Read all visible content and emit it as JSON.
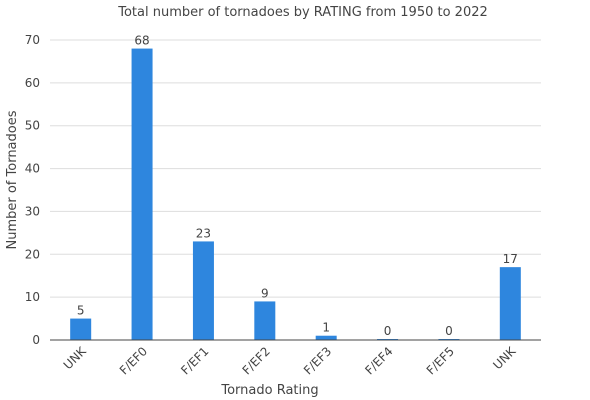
{
  "chart_data": {
    "type": "bar",
    "title": "Total number of tornadoes by RATING from 1950 to 2022",
    "xlabel": "Tornado Rating",
    "ylabel": "Number of Tornadoes",
    "categories": [
      "UNK",
      "F/EF0",
      "F/EF1",
      "F/EF2",
      "F/EF3",
      "F/EF4",
      "F/EF5",
      "UNK"
    ],
    "values": [
      5,
      68,
      23,
      9,
      1,
      0,
      0,
      17
    ],
    "ylim": [
      0,
      70
    ],
    "yticks": [
      0,
      10,
      20,
      30,
      40,
      50,
      60,
      70
    ],
    "grid": true,
    "legend": "none",
    "bar_color": "#2e86de"
  }
}
